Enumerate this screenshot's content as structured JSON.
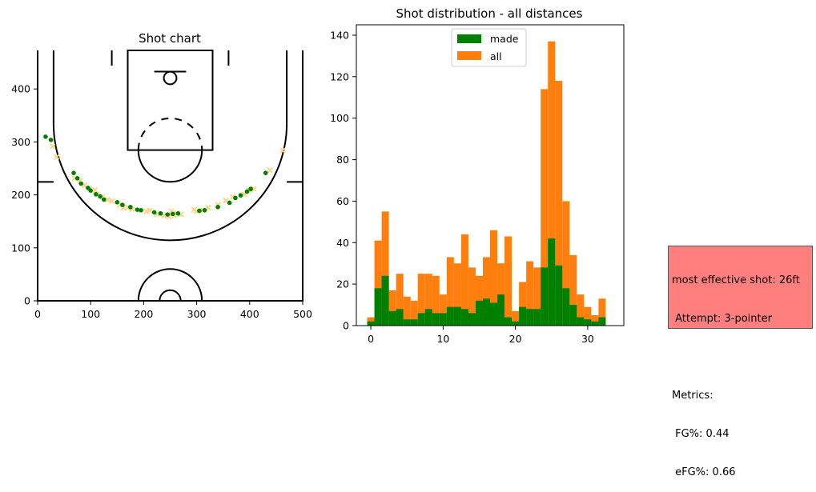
{
  "chart_data": [
    {
      "type": "scatter",
      "title": "Shot chart",
      "xlim": [
        0,
        500
      ],
      "ylim": [
        0,
        470
      ],
      "xticks": [
        "0",
        "100",
        "200",
        "300",
        "400",
        "500"
      ],
      "yticks": [
        "0",
        "100",
        "200",
        "300",
        "400"
      ],
      "made_color": "#008000",
      "missed_color": "#ffd27f",
      "made": [
        [
          15,
          308
        ],
        [
          25,
          302
        ],
        [
          68,
          240
        ],
        [
          75,
          230
        ],
        [
          82,
          220
        ],
        [
          95,
          212
        ],
        [
          100,
          207
        ],
        [
          110,
          200
        ],
        [
          118,
          196
        ],
        [
          125,
          190
        ],
        [
          150,
          185
        ],
        [
          160,
          180
        ],
        [
          175,
          176
        ],
        [
          188,
          171
        ],
        [
          195,
          170
        ],
        [
          220,
          166
        ],
        [
          232,
          164
        ],
        [
          245,
          162
        ],
        [
          255,
          163
        ],
        [
          265,
          164
        ],
        [
          305,
          169
        ],
        [
          315,
          170
        ],
        [
          340,
          176
        ],
        [
          362,
          184
        ],
        [
          373,
          193
        ],
        [
          383,
          198
        ],
        [
          395,
          205
        ],
        [
          402,
          210
        ],
        [
          430,
          240
        ]
      ],
      "missed": [
        [
          28,
          290
        ],
        [
          36,
          270
        ],
        [
          70,
          230
        ],
        [
          80,
          225
        ],
        [
          88,
          217
        ],
        [
          98,
          210
        ],
        [
          108,
          208
        ],
        [
          112,
          200
        ],
        [
          122,
          195
        ],
        [
          132,
          190
        ],
        [
          140,
          187
        ],
        [
          155,
          180
        ],
        [
          162,
          175
        ],
        [
          170,
          175
        ],
        [
          178,
          172
        ],
        [
          205,
          168
        ],
        [
          212,
          170
        ],
        [
          225,
          163
        ],
        [
          238,
          160
        ],
        [
          248,
          158
        ],
        [
          252,
          168
        ],
        [
          258,
          160
        ],
        [
          262,
          165
        ],
        [
          270,
          162
        ],
        [
          295,
          171
        ],
        [
          300,
          168
        ],
        [
          312,
          170
        ],
        [
          322,
          175
        ],
        [
          340,
          180
        ],
        [
          355,
          188
        ],
        [
          368,
          195
        ],
        [
          390,
          200
        ],
        [
          398,
          208
        ],
        [
          408,
          210
        ],
        [
          438,
          245
        ],
        [
          462,
          282
        ]
      ]
    },
    {
      "type": "bar",
      "title": "Shot distribution - all distances",
      "xlim": [
        -2,
        35
      ],
      "ylim": [
        0,
        145
      ],
      "xticks": [
        "0",
        "10",
        "20",
        "30"
      ],
      "yticks": [
        "0",
        "20",
        "40",
        "60",
        "80",
        "100",
        "120",
        "140"
      ],
      "bin_width": 1,
      "series": [
        {
          "name": "made",
          "color": "#008000",
          "values": [
            2,
            18,
            24,
            7,
            8,
            3,
            3,
            6,
            8,
            6,
            6,
            9,
            9,
            8,
            6,
            12,
            13,
            11,
            15,
            4,
            2,
            9,
            8,
            8,
            28,
            42,
            29,
            18,
            10,
            4,
            3,
            2,
            4
          ]
        },
        {
          "name": "all",
          "color": "#ff7f0e",
          "values": [
            4,
            41,
            55,
            17,
            25,
            14,
            12,
            25,
            25,
            24,
            15,
            33,
            30,
            44,
            28,
            24,
            33,
            46,
            30,
            43,
            7,
            21,
            31,
            28,
            114,
            137,
            118,
            60,
            34,
            15,
            9,
            5,
            13
          ]
        }
      ]
    }
  ],
  "info_box": {
    "line1": "most effective shot: 26ft",
    "line2": " Attempt: 3-pointer",
    "line3": "",
    "line4": "Metrics:",
    "line5": " FG%: 0.44",
    "line6": " eFG%: 0.66",
    "color": "#ff7f7f"
  }
}
